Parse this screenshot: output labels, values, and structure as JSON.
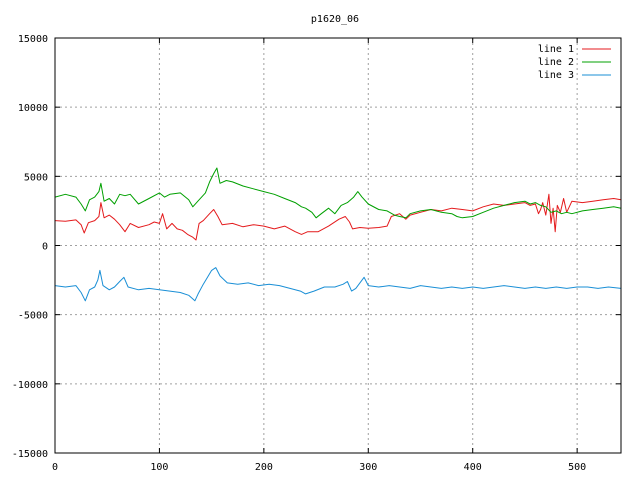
{
  "chart_data": {
    "type": "line",
    "title": "p1620_06",
    "xlabel": "",
    "ylabel": "",
    "xlim": [
      0,
      542
    ],
    "ylim": [
      -15000,
      15000
    ],
    "xticks": [
      0,
      100,
      200,
      300,
      400,
      500
    ],
    "yticks": [
      -15000,
      -10000,
      -5000,
      0,
      5000,
      10000,
      15000
    ],
    "grid": true,
    "legend_position": "top-right",
    "series": [
      {
        "name": "line 1",
        "color": "#e41a1c",
        "points": [
          [
            0,
            1800
          ],
          [
            10,
            1750
          ],
          [
            20,
            1850
          ],
          [
            25,
            1500
          ],
          [
            28,
            900
          ],
          [
            32,
            1650
          ],
          [
            38,
            1800
          ],
          [
            42,
            2100
          ],
          [
            44,
            3100
          ],
          [
            47,
            2000
          ],
          [
            52,
            2200
          ],
          [
            57,
            1900
          ],
          [
            62,
            1500
          ],
          [
            67,
            1000
          ],
          [
            72,
            1600
          ],
          [
            80,
            1300
          ],
          [
            90,
            1500
          ],
          [
            95,
            1700
          ],
          [
            100,
            1600
          ],
          [
            103,
            2300
          ],
          [
            107,
            1200
          ],
          [
            112,
            1600
          ],
          [
            117,
            1200
          ],
          [
            122,
            1100
          ],
          [
            127,
            800
          ],
          [
            132,
            600
          ],
          [
            135,
            400
          ],
          [
            138,
            1600
          ],
          [
            142,
            1800
          ],
          [
            148,
            2300
          ],
          [
            152,
            2600
          ],
          [
            156,
            2100
          ],
          [
            160,
            1500
          ],
          [
            170,
            1600
          ],
          [
            180,
            1350
          ],
          [
            190,
            1500
          ],
          [
            200,
            1400
          ],
          [
            210,
            1200
          ],
          [
            220,
            1400
          ],
          [
            230,
            1000
          ],
          [
            236,
            800
          ],
          [
            242,
            1000
          ],
          [
            252,
            1000
          ],
          [
            262,
            1400
          ],
          [
            272,
            1900
          ],
          [
            278,
            2100
          ],
          [
            282,
            1700
          ],
          [
            285,
            1200
          ],
          [
            292,
            1300
          ],
          [
            300,
            1250
          ],
          [
            310,
            1300
          ],
          [
            318,
            1400
          ],
          [
            322,
            2100
          ],
          [
            330,
            2300
          ],
          [
            336,
            1900
          ],
          [
            340,
            2200
          ],
          [
            350,
            2400
          ],
          [
            360,
            2600
          ],
          [
            370,
            2500
          ],
          [
            380,
            2700
          ],
          [
            390,
            2600
          ],
          [
            400,
            2500
          ],
          [
            410,
            2800
          ],
          [
            420,
            3000
          ],
          [
            430,
            2900
          ],
          [
            440,
            3000
          ],
          [
            450,
            3100
          ],
          [
            455,
            2900
          ],
          [
            460,
            3000
          ],
          [
            463,
            2300
          ],
          [
            465,
            2600
          ],
          [
            467,
            3100
          ],
          [
            470,
            2200
          ],
          [
            473,
            3700
          ],
          [
            475,
            1600
          ],
          [
            477,
            2700
          ],
          [
            479,
            1000
          ],
          [
            481,
            2900
          ],
          [
            484,
            2400
          ],
          [
            487,
            3400
          ],
          [
            490,
            2400
          ],
          [
            495,
            3200
          ],
          [
            505,
            3100
          ],
          [
            515,
            3200
          ],
          [
            525,
            3300
          ],
          [
            535,
            3400
          ],
          [
            542,
            3300
          ]
        ]
      },
      {
        "name": "line 2",
        "color": "#00a000",
        "points": [
          [
            0,
            3500
          ],
          [
            10,
            3700
          ],
          [
            20,
            3500
          ],
          [
            25,
            3000
          ],
          [
            29,
            2500
          ],
          [
            33,
            3300
          ],
          [
            38,
            3500
          ],
          [
            42,
            3900
          ],
          [
            44,
            4500
          ],
          [
            47,
            3200
          ],
          [
            52,
            3400
          ],
          [
            57,
            3000
          ],
          [
            62,
            3700
          ],
          [
            67,
            3600
          ],
          [
            72,
            3700
          ],
          [
            80,
            3000
          ],
          [
            90,
            3400
          ],
          [
            100,
            3800
          ],
          [
            105,
            3500
          ],
          [
            110,
            3700
          ],
          [
            120,
            3800
          ],
          [
            128,
            3300
          ],
          [
            132,
            2800
          ],
          [
            138,
            3300
          ],
          [
            144,
            3800
          ],
          [
            148,
            4600
          ],
          [
            152,
            5200
          ],
          [
            155,
            5600
          ],
          [
            158,
            4500
          ],
          [
            164,
            4700
          ],
          [
            170,
            4600
          ],
          [
            180,
            4300
          ],
          [
            190,
            4100
          ],
          [
            200,
            3900
          ],
          [
            210,
            3700
          ],
          [
            220,
            3400
          ],
          [
            230,
            3100
          ],
          [
            236,
            2800
          ],
          [
            240,
            2700
          ],
          [
            246,
            2400
          ],
          [
            250,
            2000
          ],
          [
            255,
            2300
          ],
          [
            262,
            2700
          ],
          [
            268,
            2300
          ],
          [
            274,
            2900
          ],
          [
            280,
            3100
          ],
          [
            286,
            3500
          ],
          [
            290,
            3900
          ],
          [
            294,
            3500
          ],
          [
            300,
            3000
          ],
          [
            310,
            2600
          ],
          [
            318,
            2500
          ],
          [
            325,
            2200
          ],
          [
            330,
            2100
          ],
          [
            336,
            2000
          ],
          [
            340,
            2300
          ],
          [
            350,
            2500
          ],
          [
            360,
            2600
          ],
          [
            370,
            2400
          ],
          [
            380,
            2300
          ],
          [
            385,
            2100
          ],
          [
            390,
            2000
          ],
          [
            400,
            2100
          ],
          [
            410,
            2400
          ],
          [
            420,
            2700
          ],
          [
            430,
            2900
          ],
          [
            440,
            3100
          ],
          [
            450,
            3200
          ],
          [
            455,
            3000
          ],
          [
            460,
            3100
          ],
          [
            465,
            2900
          ],
          [
            470,
            2800
          ],
          [
            475,
            2400
          ],
          [
            480,
            2500
          ],
          [
            485,
            2300
          ],
          [
            490,
            2400
          ],
          [
            495,
            2300
          ],
          [
            505,
            2500
          ],
          [
            515,
            2600
          ],
          [
            525,
            2700
          ],
          [
            535,
            2800
          ],
          [
            542,
            2700
          ]
        ]
      },
      {
        "name": "line 3",
        "color": "#1a8fd6",
        "points": [
          [
            0,
            -2900
          ],
          [
            10,
            -3000
          ],
          [
            20,
            -2900
          ],
          [
            25,
            -3400
          ],
          [
            29,
            -4000
          ],
          [
            33,
            -3200
          ],
          [
            38,
            -3000
          ],
          [
            41,
            -2500
          ],
          [
            43,
            -1800
          ],
          [
            46,
            -2900
          ],
          [
            52,
            -3200
          ],
          [
            57,
            -3000
          ],
          [
            62,
            -2600
          ],
          [
            66,
            -2300
          ],
          [
            70,
            -3000
          ],
          [
            80,
            -3200
          ],
          [
            90,
            -3100
          ],
          [
            100,
            -3200
          ],
          [
            110,
            -3300
          ],
          [
            120,
            -3400
          ],
          [
            128,
            -3600
          ],
          [
            134,
            -4000
          ],
          [
            137,
            -3500
          ],
          [
            142,
            -2800
          ],
          [
            146,
            -2300
          ],
          [
            150,
            -1800
          ],
          [
            154,
            -1600
          ],
          [
            158,
            -2200
          ],
          [
            165,
            -2700
          ],
          [
            175,
            -2800
          ],
          [
            185,
            -2700
          ],
          [
            195,
            -2900
          ],
          [
            205,
            -2800
          ],
          [
            215,
            -2900
          ],
          [
            225,
            -3100
          ],
          [
            235,
            -3300
          ],
          [
            240,
            -3500
          ],
          [
            248,
            -3300
          ],
          [
            258,
            -3000
          ],
          [
            268,
            -3000
          ],
          [
            276,
            -2800
          ],
          [
            280,
            -2600
          ],
          [
            284,
            -3300
          ],
          [
            288,
            -3100
          ],
          [
            292,
            -2700
          ],
          [
            296,
            -2300
          ],
          [
            300,
            -2900
          ],
          [
            310,
            -3000
          ],
          [
            320,
            -2900
          ],
          [
            330,
            -3000
          ],
          [
            340,
            -3100
          ],
          [
            350,
            -2900
          ],
          [
            360,
            -3000
          ],
          [
            370,
            -3100
          ],
          [
            380,
            -3000
          ],
          [
            390,
            -3100
          ],
          [
            400,
            -3000
          ],
          [
            410,
            -3100
          ],
          [
            420,
            -3000
          ],
          [
            430,
            -2900
          ],
          [
            440,
            -3000
          ],
          [
            450,
            -3100
          ],
          [
            460,
            -3000
          ],
          [
            470,
            -3100
          ],
          [
            480,
            -3000
          ],
          [
            490,
            -3100
          ],
          [
            500,
            -3000
          ],
          [
            510,
            -3000
          ],
          [
            520,
            -3100
          ],
          [
            530,
            -3000
          ],
          [
            542,
            -3100
          ]
        ]
      }
    ]
  }
}
